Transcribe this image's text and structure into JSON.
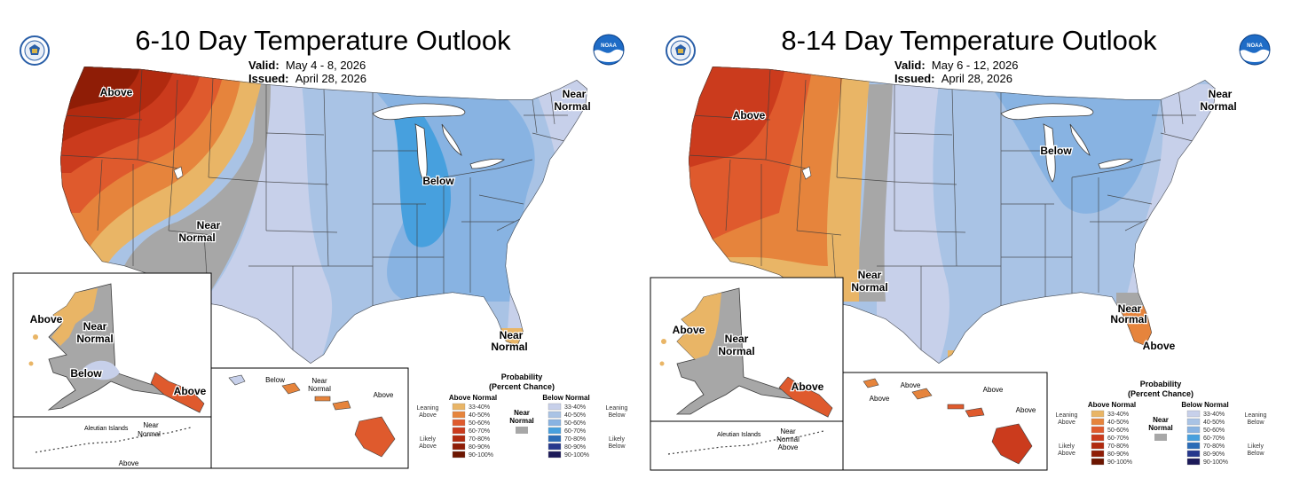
{
  "colors": {
    "above": [
      "#e9b566",
      "#e6843c",
      "#df5a2d",
      "#cb3b1d",
      "#b12a0f",
      "#8f1d06",
      "#6c1500"
    ],
    "below": [
      "#c7d0ea",
      "#a9c3e5",
      "#88b3e2",
      "#47a0de",
      "#2b6cb7",
      "#26388d",
      "#1c1a59"
    ],
    "near": "#a7a7a7",
    "water": "#ffffff",
    "border": "#3d3d3d"
  },
  "left": {
    "title": "6-10 Day Temperature Outlook",
    "valid_label": "Valid:",
    "valid_value": "May 4 - 8, 2026",
    "issued_label": "Issued:",
    "issued_value": "April 28, 2026",
    "labels": {
      "nw_above": "Above",
      "ne_near_1": "Near",
      "ne_near_2": "Normal",
      "sw_near_1": "Near",
      "sw_near_2": "Normal",
      "mw_below": "Below",
      "fl_near_1": "Near",
      "fl_near_2": "Normal",
      "ak_above": "Above",
      "ak_near_1": "Near",
      "ak_near_2": "Normal",
      "ak_below": "Below",
      "ak_se_above": "Above",
      "aleutian": "Aleutian Islands",
      "al_near_1": "Near",
      "al_near_2": "Normal",
      "al_above": "Above",
      "hi_below": "Below",
      "hi_near_1": "Near",
      "hi_near_2": "Normal",
      "hi_above": "Above"
    }
  },
  "right": {
    "title": "8-14 Day Temperature Outlook",
    "valid_label": "Valid:",
    "valid_value": "May 6 - 12, 2026",
    "issued_label": "Issued:",
    "issued_value": "April 28, 2026",
    "labels": {
      "nw_above": "Above",
      "ne_near_1": "Near",
      "ne_near_2": "Normal",
      "c_near_1": "Near",
      "c_near_2": "Normal",
      "mw_below": "Below",
      "se_near_1": "Near",
      "se_near_2": "Normal",
      "fl_above": "Above",
      "ak_above": "Above",
      "ak_near_1": "Near",
      "ak_near_2": "Normal",
      "ak_se_above": "Above",
      "aleutian": "Aleutian Islands",
      "al_near_1": "Near",
      "al_near_2": "Normal",
      "al_above": "Above",
      "hi_above_1": "Above",
      "hi_above_2": "Above",
      "hi_above_3": "Above",
      "hi_above_4": "Above"
    }
  },
  "legend": {
    "title_1": "Probability",
    "title_2": "(Percent Chance)",
    "above_header": "Above Normal",
    "below_header": "Below Normal",
    "near_1": "Near",
    "near_2": "Normal",
    "ranges": [
      "33-40%",
      "40-50%",
      "50-60%",
      "60-70%",
      "70-80%",
      "80-90%",
      "90-100%"
    ],
    "leaning_above_1": "Leaning",
    "leaning_above_2": "Above",
    "likely_above_1": "Likely",
    "likely_above_2": "Above",
    "leaning_below_1": "Leaning",
    "leaning_below_2": "Below",
    "likely_below_1": "Likely",
    "likely_below_2": "Below"
  }
}
